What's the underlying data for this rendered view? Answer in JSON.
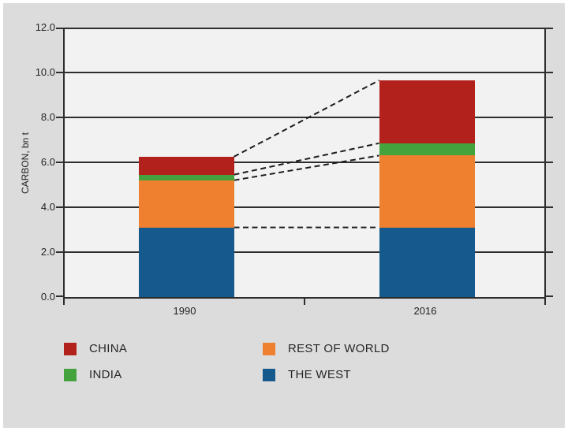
{
  "page": {
    "background": "#dcdcdc",
    "plot_background": "#f2f2f2",
    "axis_color": "#2e2e2e",
    "text_color": "#231f20"
  },
  "chart_data": {
    "type": "bar",
    "stacked": true,
    "title": "",
    "ylabel": "CARBON, bn t",
    "ylim": [
      0,
      12
    ],
    "y_tick_labels": [
      "12.0",
      "10.0",
      "8.0",
      "6.0",
      "4.0",
      "2.0",
      "0.0"
    ],
    "y_tick_values": [
      12,
      10,
      8,
      6,
      4,
      2,
      0
    ],
    "grid": true,
    "categories": [
      "1990",
      "2016"
    ],
    "series": [
      {
        "name": "THE WEST",
        "color": "#16598c",
        "values": [
          3.1,
          3.1
        ]
      },
      {
        "name": "REST OF WORLD",
        "color": "#ee8030",
        "values": [
          2.1,
          3.2
        ]
      },
      {
        "name": "INDIA",
        "color": "#45a33e",
        "values": [
          0.25,
          0.55
        ]
      },
      {
        "name": "CHINA",
        "color": "#b2211b",
        "values": [
          0.8,
          2.8
        ]
      }
    ],
    "totals": [
      6.25,
      9.65
    ],
    "connectors": "dashed lines join each stack-segment boundary of the 1990 bar to the same boundary of the 2016 bar",
    "legend_position": "bottom"
  },
  "legend": {
    "items": [
      {
        "label": "CHINA",
        "color": "#b2211b"
      },
      {
        "label": "INDIA",
        "color": "#45a33e"
      },
      {
        "label": "REST OF WORLD",
        "color": "#ee8030"
      },
      {
        "label": "THE WEST",
        "color": "#16598c"
      }
    ]
  }
}
